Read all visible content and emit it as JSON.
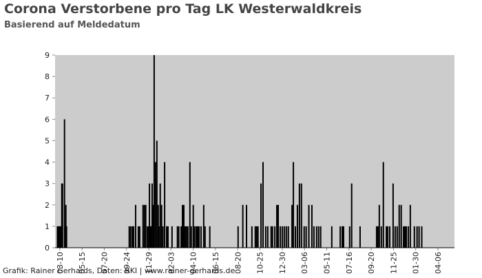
{
  "chart_data": {
    "type": "bar",
    "title": "Corona Verstorbene pro Tag LK Westerwaldkreis",
    "subtitle": "Basierend auf Meldedatum",
    "footer": "Grafik: Rainer Gerhards, Daten: RKI | www.rainer-gerhards.de",
    "color": "#000000",
    "background": "#cccccc",
    "grid": false,
    "x": [
      -7,
      -5,
      -3,
      -1,
      1,
      3,
      6,
      8,
      14,
      16,
      18,
      20,
      206,
      210,
      215,
      219,
      225,
      233,
      237,
      247,
      251,
      255,
      260,
      264,
      266,
      270,
      274,
      278,
      280,
      284,
      288,
      292,
      294,
      298,
      302,
      306,
      311,
      317,
      321,
      333,
      349,
      353,
      360,
      364,
      368,
      372,
      376,
      380,
      386,
      390,
      396,
      400,
      405,
      409,
      413,
      419,
      427,
      431,
      445,
      529,
      543,
      554,
      570,
      580,
      584,
      588,
      597,
      603,
      611,
      617,
      627,
      631,
      638,
      644,
      648,
      654,
      660,
      666,
      672,
      678,
      689,
      693,
      699,
      705,
      711,
      717,
      725,
      731,
      739,
      748,
      754,
      762,
      768,
      774,
      807,
      832,
      838,
      842,
      860,
      866,
      891,
      940,
      944,
      948,
      954,
      960,
      969,
      973,
      979,
      989,
      995,
      1001,
      1007,
      1013,
      1020,
      1024,
      1028,
      1034,
      1040,
      1052,
      1060,
      1066,
      1074
    ],
    "values": [
      1,
      1,
      1,
      1,
      1,
      1,
      3,
      3,
      6,
      1,
      2,
      1,
      1,
      1,
      1,
      1,
      2,
      1,
      1,
      2,
      2,
      2,
      1,
      1,
      3,
      1,
      3,
      2,
      9,
      4,
      5,
      2,
      1,
      3,
      2,
      1,
      4,
      1,
      1,
      1,
      1,
      1,
      1,
      2,
      2,
      1,
      1,
      1,
      4,
      1,
      2,
      1,
      1,
      1,
      1,
      1,
      2,
      1,
      1,
      1,
      2,
      2,
      1,
      1,
      1,
      1,
      3,
      4,
      1,
      1,
      1,
      1,
      1,
      2,
      2,
      1,
      1,
      1,
      1,
      1,
      2,
      4,
      1,
      2,
      3,
      3,
      1,
      1,
      2,
      2,
      1,
      1,
      1,
      1,
      1,
      1,
      1,
      1,
      1,
      3,
      1,
      1,
      1,
      2,
      1,
      4,
      1,
      1,
      1,
      3,
      1,
      1,
      2,
      2,
      1,
      1,
      1,
      1,
      2,
      1,
      1,
      1,
      1
    ],
    "xlim": [
      -14,
      1171
    ],
    "xticks": [
      {
        "value": 0,
        "label": "03-10"
      },
      {
        "value": 66,
        "label": "05-15"
      },
      {
        "value": 132,
        "label": "07-20"
      },
      {
        "value": 198,
        "label": "09-24"
      },
      {
        "value": 264,
        "label": "11-29"
      },
      {
        "value": 330,
        "label": "02-03"
      },
      {
        "value": 396,
        "label": "04-10"
      },
      {
        "value": 462,
        "label": "06-15"
      },
      {
        "value": 528,
        "label": "08-20"
      },
      {
        "value": 594,
        "label": "10-25"
      },
      {
        "value": 660,
        "label": "12-30"
      },
      {
        "value": 726,
        "label": "03-06"
      },
      {
        "value": 792,
        "label": "05-11"
      },
      {
        "value": 858,
        "label": "07-16"
      },
      {
        "value": 924,
        "label": "09-20"
      },
      {
        "value": 990,
        "label": "11-25"
      },
      {
        "value": 1056,
        "label": "01-30"
      },
      {
        "value": 1122,
        "label": "04-06"
      }
    ],
    "ylim": [
      0,
      9
    ],
    "yticks": [
      0,
      1,
      2,
      3,
      4,
      5,
      6,
      7,
      8,
      9
    ]
  }
}
